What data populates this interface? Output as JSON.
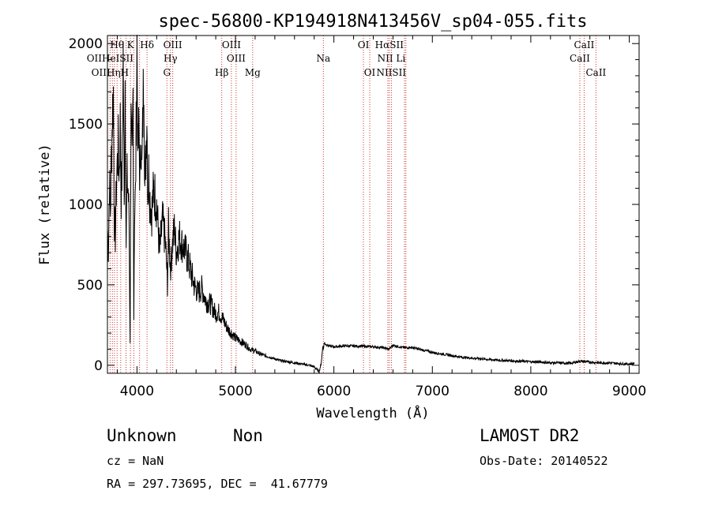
{
  "chart_data": {
    "type": "line",
    "title": "spec-56800-KP194918N413456V_sp04-055.fits",
    "xlabel": "Wavelength (Å)",
    "ylabel": "Flux (relative)",
    "xlim": [
      3700,
      9100
    ],
    "ylim": [
      -50,
      2050
    ],
    "xticks": [
      4000,
      5000,
      6000,
      7000,
      8000,
      9000
    ],
    "yticks": [
      0,
      500,
      1000,
      1500,
      2000
    ],
    "grid": false,
    "series": [
      {
        "x": [
          3700,
          3710,
          3720,
          3730,
          3740,
          3750,
          3760,
          3770,
          3780,
          3790,
          3800,
          3810,
          3820,
          3830,
          3840,
          3850,
          3860,
          3870,
          3880,
          3890,
          3900,
          3910,
          3920,
          3930,
          3935,
          3940,
          3950,
          3960,
          3968,
          3975,
          3985,
          4000,
          4010,
          4020,
          4030,
          4040,
          4050,
          4060,
          4070,
          4080,
          4090,
          4100,
          4110,
          4120,
          4130,
          4150,
          4170,
          4200,
          4230,
          4260,
          4290,
          4310,
          4320,
          4340,
          4360,
          4380,
          4400,
          4430,
          4460,
          4500,
          4540,
          4580,
          4620,
          4660,
          4700,
          4750,
          4800,
          4830,
          4860,
          4880,
          4900,
          4930,
          4960,
          5000,
          5050,
          5100,
          5150,
          5200,
          5250,
          5300,
          5350,
          5400,
          5450,
          5500,
          5550,
          5600,
          5650,
          5700,
          5750,
          5800,
          5850,
          5870,
          5880,
          5890,
          5895,
          5900,
          5920,
          5950,
          6000,
          6100,
          6200,
          6300,
          6400,
          6500,
          6560,
          6600,
          6700,
          6800,
          6900,
          7000,
          7100,
          7200,
          7300,
          7400,
          7500,
          7600,
          7700,
          7800,
          7900,
          8000,
          8100,
          8200,
          8300,
          8400,
          8500,
          8600,
          8700,
          8800,
          8900,
          9000,
          9050
        ],
        "y": [
          850,
          700,
          1150,
          950,
          1300,
          1550,
          1700,
          900,
          800,
          1100,
          1250,
          1350,
          1200,
          1500,
          1050,
          1250,
          1950,
          950,
          1800,
          750,
          1150,
          1100,
          900,
          150,
          1000,
          1500,
          1200,
          1650,
          300,
          950,
          1050,
          2000,
          1300,
          1500,
          1100,
          1450,
          1200,
          1550,
          1900,
          1100,
          1300,
          1600,
          1050,
          1200,
          1050,
          950,
          1100,
          1000,
          700,
          900,
          750,
          500,
          850,
          600,
          750,
          850,
          700,
          800,
          750,
          700,
          600,
          500,
          450,
          480,
          400,
          380,
          320,
          330,
          300,
          280,
          250,
          220,
          200,
          170,
          150,
          130,
          100,
          90,
          70,
          60,
          50,
          40,
          30,
          25,
          20,
          15,
          10,
          5,
          0,
          -10,
          -40,
          10,
          70,
          130,
          100,
          140,
          130,
          120,
          115,
          120,
          120,
          118,
          115,
          110,
          100,
          125,
          110,
          110,
          95,
          80,
          70,
          60,
          50,
          45,
          40,
          35,
          30,
          28,
          25,
          22,
          20,
          15,
          15,
          12,
          25,
          20,
          15,
          15,
          10,
          8,
          10
        ]
      }
    ],
    "annotations": [
      {
        "label": "Hθ",
        "x": 3798,
        "row": 1
      },
      {
        "label": "K",
        "x": 3934,
        "row": 1
      },
      {
        "label": "Hδ",
        "x": 4102,
        "row": 1
      },
      {
        "label": "OIII",
        "x": 4363,
        "row": 1
      },
      {
        "label": "OIII",
        "x": 4959,
        "row": 1
      },
      {
        "label": "OI",
        "x": 6300,
        "row": 1
      },
      {
        "label": "HαSII",
        "x": 6563,
        "row": 1
      },
      {
        "label": "CaII",
        "x": 8542,
        "row": 1
      },
      {
        "label": "OIIHeISII",
        "x": 3727,
        "row": 2
      },
      {
        "label": "Hγ",
        "x": 4340,
        "row": 2
      },
      {
        "label": "OIII",
        "x": 5007,
        "row": 2
      },
      {
        "label": "Na",
        "x": 5893,
        "row": 2
      },
      {
        "label": "NII Li",
        "x": 6584,
        "row": 2
      },
      {
        "label": "CaII",
        "x": 8498,
        "row": 2
      },
      {
        "label": "OIIHηH",
        "x": 3727,
        "row": 3
      },
      {
        "label": "G",
        "x": 4304,
        "row": 3
      },
      {
        "label": "Hβ",
        "x": 4861,
        "row": 3
      },
      {
        "label": "Mg",
        "x": 5175,
        "row": 3
      },
      {
        "label": "OI",
        "x": 6364,
        "row": 3
      },
      {
        "label": "NIISII",
        "x": 6583,
        "row": 3
      },
      {
        "label": "CaII",
        "x": 8662,
        "row": 3
      }
    ],
    "line_markers": [
      3727,
      3750,
      3771,
      3798,
      3835,
      3889,
      3934,
      3968,
      4026,
      4102,
      4304,
      4340,
      4363,
      4861,
      4959,
      5007,
      5175,
      5893,
      6300,
      6364,
      6548,
      6563,
      6584,
      6717,
      6731,
      8498,
      8542,
      8662
    ]
  },
  "footer": {
    "class_label": "Unknown",
    "subclass_label": "Non",
    "cz_text": "cz = NaN",
    "radec_text": "RA = 297.73695, DEC =  41.67779",
    "survey_label": "LAMOST DR2",
    "obs_date_text": "Obs-Date: 20140522"
  }
}
